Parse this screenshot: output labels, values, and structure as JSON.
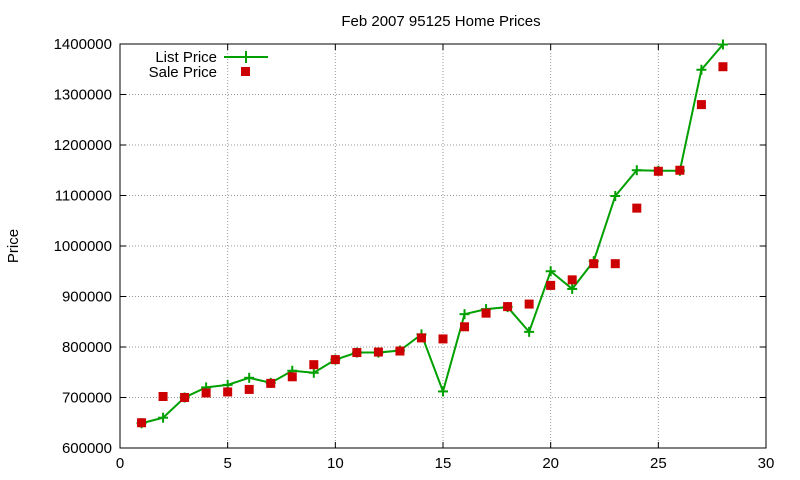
{
  "chart_data": {
    "type": "line",
    "title": "Feb 2007 95125 Home Prices",
    "xlabel": "",
    "ylabel": "Price",
    "xlim": [
      0,
      30
    ],
    "ylim": [
      600000,
      1400000
    ],
    "xticks": [
      0,
      5,
      10,
      15,
      20,
      25,
      30
    ],
    "yticks": [
      600000,
      700000,
      800000,
      900000,
      1000000,
      1100000,
      1200000,
      1300000,
      1400000
    ],
    "grid": true,
    "legend_position": "top-left",
    "series": [
      {
        "name": "List Price",
        "style": "line+cross",
        "color": "#00a000",
        "x": [
          1,
          2,
          3,
          4,
          5,
          6,
          7,
          8,
          9,
          10,
          11,
          12,
          13,
          14,
          15,
          16,
          17,
          18,
          19,
          20,
          21,
          22,
          23,
          24,
          25,
          26,
          27,
          28
        ],
        "y": [
          649000,
          660000,
          700000,
          720000,
          725000,
          739000,
          729000,
          753000,
          749000,
          775000,
          789000,
          789000,
          793000,
          825000,
          712000,
          865000,
          875000,
          879000,
          830000,
          950000,
          915000,
          970000,
          1099000,
          1150000,
          1149000,
          1149000,
          1349000,
          1399000
        ]
      },
      {
        "name": "Sale Price",
        "style": "square",
        "color": "#cc0000",
        "x": [
          1,
          2,
          3,
          4,
          5,
          6,
          7,
          8,
          9,
          10,
          11,
          12,
          13,
          14,
          15,
          16,
          17,
          18,
          19,
          20,
          21,
          22,
          23,
          24,
          25,
          26,
          27,
          28
        ],
        "y": [
          650000,
          702000,
          700000,
          709000,
          711000,
          716000,
          728000,
          741000,
          765000,
          775000,
          789000,
          790000,
          792000,
          818000,
          816000,
          840000,
          867000,
          880000,
          885000,
          922000,
          933000,
          965000,
          965000,
          1075000,
          1148000,
          1150000,
          1280000,
          1355000
        ]
      }
    ]
  }
}
